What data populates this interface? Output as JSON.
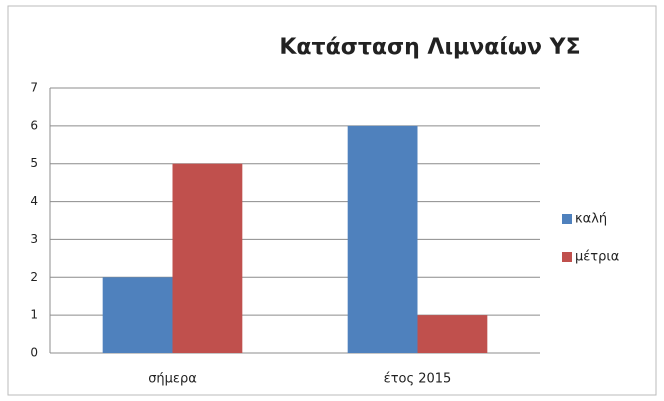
{
  "chart_data": {
    "type": "bar",
    "title": "Κατάσταση Λιμναίων ΥΣ",
    "categories": [
      "σήμερα",
      "έτος 2015"
    ],
    "series": [
      {
        "name": "καλή",
        "color": "#4f81bd",
        "values": [
          2,
          6
        ]
      },
      {
        "name": "μέτρια",
        "color": "#c0504d",
        "values": [
          5,
          1
        ]
      }
    ],
    "ylim": [
      0,
      7
    ],
    "yticks": [
      0,
      1,
      2,
      3,
      4,
      5,
      6,
      7
    ],
    "grid": true,
    "legend": "right"
  }
}
